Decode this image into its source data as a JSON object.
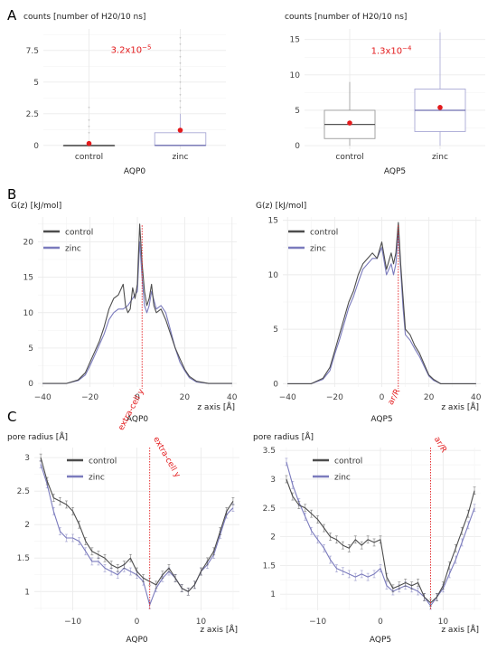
{
  "colors": {
    "control": "#4d4d4d",
    "zinc": "#7b7bbd",
    "annotation": "#e31a1c",
    "grid": "#ebebeb",
    "box_zinc": "#a9a9d6",
    "box_control": "#9a9a9a"
  },
  "panels": {
    "A": "A",
    "B": "B",
    "C": "C"
  },
  "chart_data": [
    {
      "id": "A-AQP0",
      "type": "box",
      "panel": "A",
      "ylabel": "counts [number of H20/10 ns]",
      "xlabel": "AQP0",
      "ylim": [
        -0.3,
        9.2
      ],
      "yticks": [
        0,
        2.5,
        5,
        7.5
      ],
      "ytick_labels": [
        "0",
        "2.5",
        "5",
        "7.5"
      ],
      "categories": [
        "control",
        "zinc"
      ],
      "boxes": [
        {
          "name": "control",
          "min": 0,
          "q1": 0,
          "median": 0,
          "q3": 0,
          "max": 0,
          "mean": 0.15,
          "outliers": [
            1,
            1.5,
            2,
            3
          ]
        },
        {
          "name": "zinc",
          "min": 0,
          "q1": 0,
          "median": 0,
          "q3": 1,
          "max": 2.5,
          "mean": 1.2,
          "outliers": [
            3,
            3.5,
            4,
            4.5,
            5,
            5.5,
            6,
            6.5,
            7,
            7.5,
            8,
            8.5
          ]
        }
      ],
      "annotation": {
        "text": "3.2x10",
        "sup": "−5",
        "x": 1.5,
        "y": 7.3
      }
    },
    {
      "id": "A-AQP5",
      "type": "box",
      "panel": "A",
      "ylabel": "counts [number of H20/10 ns]",
      "xlabel": "AQP5",
      "ylim": [
        -0.5,
        16.5
      ],
      "yticks": [
        0,
        5,
        10,
        15
      ],
      "ytick_labels": [
        "0",
        "5",
        "10",
        "15"
      ],
      "categories": [
        "control",
        "zinc"
      ],
      "boxes": [
        {
          "name": "control",
          "min": 0,
          "q1": 1,
          "median": 3,
          "q3": 5,
          "max": 9,
          "mean": 3.2,
          "outliers": []
        },
        {
          "name": "zinc",
          "min": 0,
          "q1": 2,
          "median": 5,
          "q3": 8,
          "max": 16,
          "mean": 5.4,
          "outliers": []
        }
      ],
      "annotation": {
        "text": "1.3x10",
        "sup": "−4",
        "x": 1.5,
        "y": 13
      }
    },
    {
      "id": "B-AQP0",
      "type": "line",
      "panel": "B",
      "ylabel": "G(z) [kJ/mol]",
      "xlabel": "AQP0",
      "xaxis_label": "z axis [Å]",
      "xlim": [
        -42,
        42
      ],
      "ylim": [
        -0.5,
        23.5
      ],
      "xticks": [
        -40,
        -20,
        0,
        20,
        40
      ],
      "yticks": [
        0,
        5,
        10,
        15,
        20
      ],
      "vline": {
        "x": 2,
        "label": "extra-cell y"
      },
      "legend": "top-left",
      "series": [
        {
          "name": "control",
          "x": [
            -40,
            -30,
            -25,
            -22,
            -20,
            -18,
            -16,
            -14,
            -12,
            -10,
            -8,
            -6,
            -5,
            -4,
            -3,
            -2,
            -1,
            0,
            1,
            2,
            3,
            4,
            5,
            6,
            7,
            8,
            10,
            12,
            14,
            16,
            18,
            20,
            22,
            25,
            30,
            40
          ],
          "y": [
            0,
            0,
            0.5,
            1.5,
            3,
            4.5,
            6,
            8,
            10.5,
            12,
            12.5,
            14,
            11,
            10,
            10.5,
            13.5,
            12,
            14,
            22.5,
            17,
            13,
            11,
            12,
            14,
            11,
            10,
            10.5,
            9,
            7,
            5,
            3.5,
            2,
            1,
            0.3,
            0,
            0
          ]
        },
        {
          "name": "zinc",
          "x": [
            -40,
            -30,
            -25,
            -22,
            -20,
            -18,
            -16,
            -14,
            -12,
            -10,
            -8,
            -6,
            -4,
            -2,
            0,
            1,
            2,
            3,
            4,
            5,
            6,
            8,
            10,
            12,
            14,
            16,
            18,
            20,
            22,
            25,
            30,
            40
          ],
          "y": [
            0,
            0,
            0.4,
            1.2,
            2.5,
            4,
            5.5,
            7,
            9,
            10,
            10.5,
            10.5,
            11,
            12,
            13,
            20,
            15,
            11,
            10,
            11,
            13,
            10.5,
            11,
            10,
            7.5,
            5,
            3,
            1.8,
            0.8,
            0.2,
            0,
            0
          ]
        }
      ]
    },
    {
      "id": "B-AQP5",
      "type": "line",
      "panel": "B",
      "ylabel": "G(z) [kJ/mol]",
      "xlabel": "AQP5",
      "xaxis_label": "z axis [Å]",
      "xlim": [
        -42,
        42
      ],
      "ylim": [
        -0.3,
        15.3
      ],
      "xticks": [
        -40,
        -20,
        0,
        20,
        40
      ],
      "yticks": [
        0,
        5,
        10,
        15
      ],
      "vline": {
        "x": 7,
        "label": "ar/R"
      },
      "legend": "top-left",
      "series": [
        {
          "name": "control",
          "x": [
            -40,
            -30,
            -25,
            -22,
            -20,
            -18,
            -16,
            -14,
            -12,
            -10,
            -8,
            -6,
            -4,
            -2,
            0,
            2,
            4,
            5,
            6,
            7,
            8,
            9,
            10,
            12,
            14,
            16,
            18,
            20,
            22,
            25,
            30,
            40
          ],
          "y": [
            0,
            0,
            0.5,
            1.5,
            3,
            4.5,
            6,
            7.5,
            8.5,
            10,
            11,
            11.5,
            12,
            11.5,
            13,
            10.5,
            12,
            11,
            12,
            14.8,
            11,
            8,
            5,
            4.5,
            3.5,
            2.8,
            1.8,
            0.8,
            0.4,
            0,
            0,
            0
          ]
        },
        {
          "name": "zinc",
          "x": [
            -40,
            -30,
            -25,
            -22,
            -20,
            -18,
            -16,
            -14,
            -12,
            -10,
            -8,
            -6,
            -4,
            -2,
            0,
            2,
            4,
            5,
            6,
            7,
            8,
            9,
            10,
            12,
            14,
            16,
            18,
            20,
            22,
            25,
            30,
            40
          ],
          "y": [
            0,
            0,
            0.4,
            1.2,
            2.7,
            4,
            5.5,
            7,
            8,
            9.3,
            10.5,
            11,
            11.5,
            11.5,
            12.5,
            10,
            11,
            10,
            11,
            14,
            10.5,
            7,
            4.5,
            4,
            3.2,
            2.5,
            1.6,
            0.7,
            0.3,
            0,
            0,
            0
          ]
        }
      ]
    },
    {
      "id": "C-AQP0",
      "type": "line",
      "panel": "C",
      "ylabel": "pore radius [Å]",
      "xlabel": "AQP0",
      "xaxis_label": "z axis [Å]",
      "xlim": [
        -16,
        16
      ],
      "ylim": [
        0.72,
        3.15
      ],
      "xticks": [
        -10,
        0,
        10
      ],
      "yticks": [
        1,
        1.5,
        2,
        2.5,
        3
      ],
      "vline": {
        "x": 2,
        "label": "extra-cell y"
      },
      "legend": "top-left",
      "series": [
        {
          "name": "control",
          "x": [
            -15,
            -14,
            -13,
            -12,
            -11,
            -10,
            -9,
            -8,
            -7,
            -6,
            -5,
            -4,
            -3,
            -2,
            -1,
            0,
            1,
            2,
            3,
            4,
            5,
            6,
            7,
            8,
            9,
            10,
            11,
            12,
            13,
            14,
            15
          ],
          "y": [
            3.0,
            2.65,
            2.4,
            2.35,
            2.3,
            2.2,
            2.0,
            1.75,
            1.6,
            1.55,
            1.5,
            1.4,
            1.35,
            1.4,
            1.5,
            1.3,
            1.2,
            1.15,
            1.1,
            1.25,
            1.35,
            1.2,
            1.05,
            1.0,
            1.1,
            1.3,
            1.45,
            1.6,
            1.9,
            2.2,
            2.35
          ]
        },
        {
          "name": "zinc",
          "x": [
            -15,
            -14,
            -13,
            -12,
            -11,
            -10,
            -9,
            -8,
            -7,
            -6,
            -5,
            -4,
            -3,
            -2,
            -1,
            0,
            1,
            2,
            3,
            4,
            5,
            6,
            7,
            8,
            9,
            10,
            11,
            12,
            13,
            14,
            15
          ],
          "y": [
            2.9,
            2.6,
            2.2,
            1.9,
            1.8,
            1.8,
            1.75,
            1.6,
            1.45,
            1.45,
            1.35,
            1.3,
            1.25,
            1.35,
            1.3,
            1.25,
            1.15,
            0.8,
            1.05,
            1.2,
            1.3,
            1.2,
            1.05,
            1.0,
            1.1,
            1.3,
            1.4,
            1.55,
            1.85,
            2.15,
            2.25
          ]
        }
      ]
    },
    {
      "id": "C-AQP5",
      "type": "line",
      "panel": "C",
      "ylabel": "pore radius [Å]",
      "xlabel": "AQP5",
      "xaxis_label": "z axis [Å]",
      "xlim": [
        -16,
        16
      ],
      "ylim": [
        0.72,
        3.55
      ],
      "xticks": [
        -10,
        0,
        10
      ],
      "yticks": [
        1,
        1.5,
        2,
        2.5,
        3,
        3.5
      ],
      "ytick_labels": [
        "1",
        "1.5",
        "2",
        "2.5",
        "3",
        "3.5"
      ],
      "vline": {
        "x": 8,
        "label": "ar/R"
      },
      "legend": "top-left",
      "series": [
        {
          "name": "control",
          "x": [
            -15,
            -14,
            -13,
            -12,
            -11,
            -10,
            -9,
            -8,
            -7,
            -6,
            -5,
            -4,
            -3,
            -2,
            -1,
            0,
            1,
            2,
            3,
            4,
            5,
            6,
            7,
            8,
            9,
            10,
            11,
            12,
            13,
            14,
            15
          ],
          "y": [
            3.0,
            2.7,
            2.55,
            2.5,
            2.4,
            2.3,
            2.15,
            2.0,
            1.95,
            1.85,
            1.8,
            1.95,
            1.85,
            1.95,
            1.9,
            1.95,
            1.3,
            1.1,
            1.15,
            1.2,
            1.15,
            1.2,
            0.95,
            0.85,
            0.95,
            1.15,
            1.5,
            1.8,
            2.1,
            2.4,
            2.8
          ]
        },
        {
          "name": "zinc",
          "x": [
            -15,
            -14,
            -13,
            -12,
            -11,
            -10,
            -9,
            -8,
            -7,
            -6,
            -5,
            -4,
            -3,
            -2,
            -1,
            0,
            1,
            2,
            3,
            4,
            5,
            6,
            7,
            8,
            9,
            10,
            11,
            12,
            13,
            14,
            15
          ],
          "y": [
            3.3,
            2.9,
            2.6,
            2.35,
            2.1,
            1.95,
            1.8,
            1.6,
            1.45,
            1.4,
            1.35,
            1.3,
            1.35,
            1.3,
            1.35,
            1.45,
            1.15,
            1.05,
            1.1,
            1.15,
            1.1,
            1.05,
            0.95,
            0.8,
            0.95,
            1.1,
            1.35,
            1.6,
            1.9,
            2.2,
            2.5
          ]
        }
      ]
    }
  ]
}
